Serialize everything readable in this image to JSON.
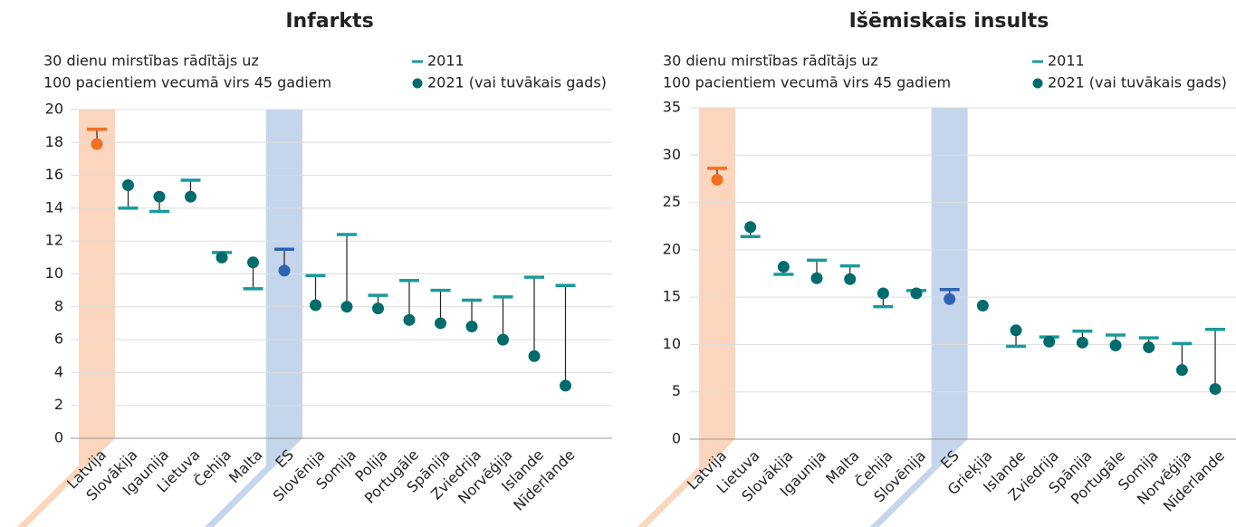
{
  "chart_data": [
    {
      "type": "dumbbell",
      "title": "Infarkts",
      "subtitle": [
        "30 dienu mirstības rādītājs uz",
        "100 pacientiem vecumā virs 45 gadiem"
      ],
      "categories": [
        "Latvija",
        "Slovākija",
        "Igaunija",
        "Lietuva",
        "Čehija",
        "Malta",
        "ES",
        "Slovēnija",
        "Somija",
        "Polija",
        "Portugāle",
        "Spānija",
        "Zviedrija",
        "Norvēģija",
        "Islande",
        "Nīderlande"
      ],
      "series": [
        {
          "name": "2011",
          "color": "#1a9a9a",
          "values": [
            18.8,
            14.0,
            13.8,
            15.7,
            11.3,
            9.1,
            11.5,
            9.9,
            12.4,
            8.7,
            9.6,
            9.0,
            8.4,
            8.6,
            9.8,
            9.3
          ]
        },
        {
          "name": "2021 (vai tuvākais gads)",
          "color": "#006b6b",
          "values": [
            17.9,
            15.4,
            14.7,
            14.7,
            11.0,
            10.7,
            10.2,
            8.1,
            8.0,
            7.9,
            7.2,
            7.0,
            6.8,
            6.0,
            5.0,
            3.2
          ]
        }
      ],
      "highlight": [
        {
          "category": "Latvija",
          "color": "#f36f21",
          "band": "#fbd5bd"
        },
        {
          "category": "ES",
          "color": "#2f62b3",
          "band": "#c5d5ec"
        }
      ],
      "ylim": [
        0,
        20
      ],
      "yticks": [
        0,
        2,
        4,
        6,
        8,
        10,
        12,
        14,
        16,
        18,
        20
      ],
      "grid": true
    },
    {
      "type": "dumbbell",
      "title": "Išēmiskais insults",
      "subtitle": [
        "30 dienu mirstības rādītājs uz",
        "100 pacientiem vecumā virs 45 gadiem"
      ],
      "categories": [
        "Latvija",
        "Lietuva",
        "Slovākija",
        "Igaunija",
        "Malta",
        "Čehija",
        "Slovēnija",
        "ES",
        "Grieķija",
        "Islande",
        "Zviedrija",
        "Spānija",
        "Portugāle",
        "Somija",
        "Norvēģija",
        "Nīderlande"
      ],
      "series": [
        {
          "name": "2011",
          "color": "#1a9a9a",
          "values": [
            28.6,
            21.4,
            17.4,
            18.9,
            18.3,
            14.0,
            15.7,
            15.8,
            null,
            9.8,
            10.8,
            11.4,
            11.0,
            10.7,
            10.1,
            11.6
          ]
        },
        {
          "name": "2021 (vai tuvākais gads)",
          "color": "#006b6b",
          "values": [
            27.4,
            22.4,
            18.2,
            17.0,
            16.9,
            15.4,
            15.4,
            14.8,
            14.1,
            11.5,
            10.3,
            10.2,
            9.9,
            9.7,
            7.3,
            5.3
          ]
        }
      ],
      "highlight": [
        {
          "category": "Latvija",
          "color": "#f36f21",
          "band": "#fbd5bd"
        },
        {
          "category": "ES",
          "color": "#2f62b3",
          "band": "#c5d5ec"
        }
      ],
      "ylim": [
        0,
        35
      ],
      "yticks": [
        0,
        5,
        10,
        15,
        20,
        25,
        30,
        35
      ],
      "grid": true
    }
  ]
}
